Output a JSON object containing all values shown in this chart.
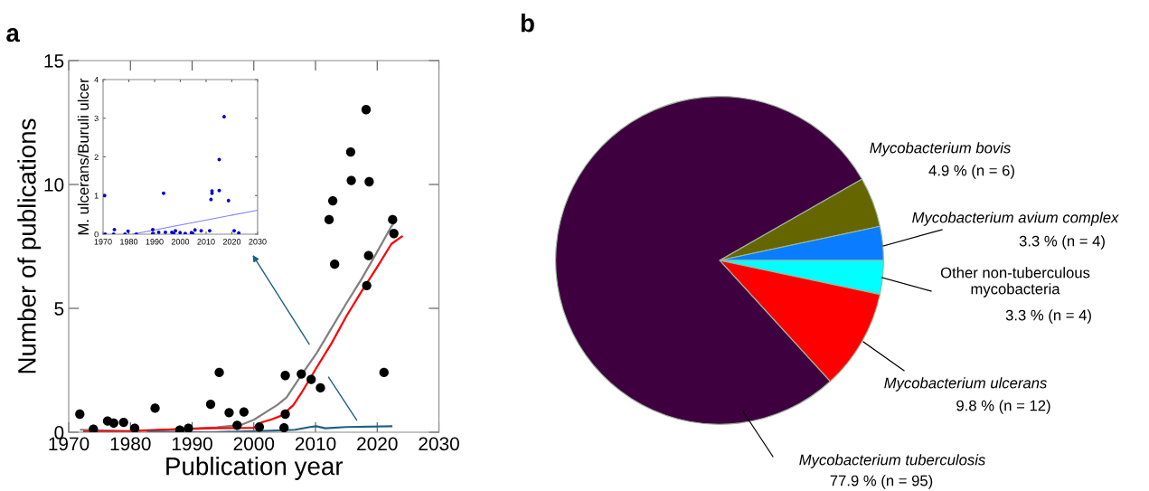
{
  "chart_data": [
    {
      "type": "scatter",
      "title": "a",
      "xlabel": "Publication year",
      "ylabel": "Number of publications",
      "xlim": [
        1970,
        2030
      ],
      "ylim": [
        0,
        15
      ],
      "xticks": [
        1970,
        1980,
        1990,
        2000,
        2010,
        2020,
        2030
      ],
      "yticks": [
        0,
        5,
        10,
        15
      ],
      "series": [
        {
          "type": "scatter",
          "marker": "circle",
          "color": "#000000",
          "x": [
            1971.8,
            1974.0,
            1976.3,
            1977.3,
            1978.9,
            1980.7,
            1984.0,
            1988.0,
            1989.4,
            1993.0,
            1994.4,
            1996.0,
            1997.3,
            1998.4,
            2000.9,
            2005.1,
            2005.1,
            2004.9,
            2007.7,
            2009.3,
            2010.8,
            2012.2,
            2012.8,
            2013.1,
            2015.7,
            2015.8,
            2018.2,
            2018.3,
            2018.6,
            2018.7,
            2021.1,
            2022.5,
            2022.7
          ],
          "values": [
            0.73,
            0.12,
            0.45,
            0.37,
            0.4,
            0.16,
            0.97,
            0.09,
            0.16,
            1.13,
            2.41,
            0.79,
            0.28,
            0.82,
            0.21,
            2.29,
            0.73,
            0.18,
            2.35,
            2.13,
            1.79,
            8.58,
            9.34,
            6.78,
            11.31,
            10.16,
            13.02,
            5.92,
            7.13,
            10.11,
            2.41,
            8.58,
            8.02
          ]
        },
        {
          "type": "line",
          "marker": "none",
          "color": "#808080",
          "x": [
            1972.0,
            1979.5,
            1988.0,
            1994.0,
            1998.0,
            2000.0,
            2003.8,
            2005.3,
            2007.7,
            2010.2,
            2012.6,
            2015.0,
            2017.5,
            2019.9,
            2022.3,
            2022.9
          ],
          "values": [
            0.1,
            0.05,
            0.12,
            0.2,
            0.3,
            0.5,
            1.1,
            1.4,
            2.3,
            3.2,
            4.2,
            5.2,
            6.2,
            7.24,
            8.31,
            8.5
          ]
        },
        {
          "type": "line",
          "marker": "none",
          "color": "#ff0000",
          "x": [
            1972.5,
            1979.8,
            1988.0,
            1993.0,
            2000.0,
            2001.3,
            2002.8,
            2004.5,
            2006.4,
            2007.7,
            2010.2,
            2012.6,
            2015.0,
            2017.4,
            2019.9,
            2022.3,
            2024.0
          ],
          "values": [
            0.03,
            0.04,
            0.12,
            0.16,
            0.18,
            0.4,
            0.51,
            0.67,
            1.09,
            1.58,
            2.62,
            3.59,
            4.68,
            5.66,
            6.63,
            7.6,
            7.9
          ]
        },
        {
          "type": "line",
          "marker": "none",
          "color": "#1f6080",
          "x": [
            1982.8,
            1993.0,
            2002.8,
            2006.7,
            2009.1,
            2010.1,
            2011.6,
            2015.0,
            2022.3
          ],
          "values": [
            0.02,
            0.0,
            0.06,
            0.1,
            0.21,
            0.24,
            0.16,
            0.21,
            0.24
          ]
        }
      ]
    },
    {
      "type": "scatter",
      "ylabel": "M. ulcerans/Buruli ulcer",
      "xlim": [
        1970,
        2030
      ],
      "ylim": [
        0,
        4
      ],
      "xticks": [
        1970,
        1980,
        1990,
        2000,
        2010,
        2020,
        2030
      ],
      "yticks": [
        0,
        1,
        2,
        3,
        4
      ],
      "series": [
        {
          "type": "scatter",
          "marker": "circle",
          "color": "#0000cc",
          "x": [
            1970.6,
            1970.8,
            1974.1,
            1974.4,
            1978.5,
            1979.7,
            1982.9,
            1989.3,
            1989.3,
            1991.6,
            1993.5,
            1994.2,
            1996.7,
            1997.4,
            1998.1,
            1999.9,
            2001.9,
            2004.3,
            2004.8,
            2005.7,
            2008.1,
            2011.4,
            2011.9,
            2012.3,
            2012.3,
            2015.1,
            2015.1,
            2017.0,
            2018.7,
            2020.9,
            2022.7
          ],
          "values": [
            1.0,
            0.0,
            0.0,
            0.12,
            0.0,
            0.08,
            0.0,
            0.12,
            0.02,
            0.05,
            1.06,
            0.05,
            0.05,
            0.02,
            0.09,
            0.04,
            0.02,
            0.04,
            0.02,
            0.11,
            0.09,
            0.09,
            0.9,
            1.06,
            1.12,
            1.13,
            1.93,
            3.04,
            0.87,
            0.09,
            0.03
          ]
        },
        {
          "type": "line",
          "marker": "none",
          "color": "#8080ff",
          "x": [
            1981.4,
            2030
          ],
          "values": [
            0.0,
            0.62
          ]
        }
      ]
    },
    {
      "type": "pie",
      "title": "b",
      "categories": [
        "Mycobacterium bovis",
        "Mycobacterium avium complex",
        "Other non-tuberculous\nmycobacteria",
        "Mycobacterium ulcerans",
        "Mycobacterium tuberculosis"
      ],
      "values": [
        4.9,
        3.3,
        3.3,
        9.8,
        77.9
      ],
      "colors": [
        "#666600",
        "#0a7cff",
        "#00ffff",
        "#ff0000",
        "#3f0040"
      ],
      "value_labels": [
        "4.9 % (n = 6)",
        "3.3 % (n = 4)",
        "3.3 % (n = 4)",
        "9.8 % (n = 12)",
        "77.9 % (n = 95)"
      ]
    }
  ]
}
